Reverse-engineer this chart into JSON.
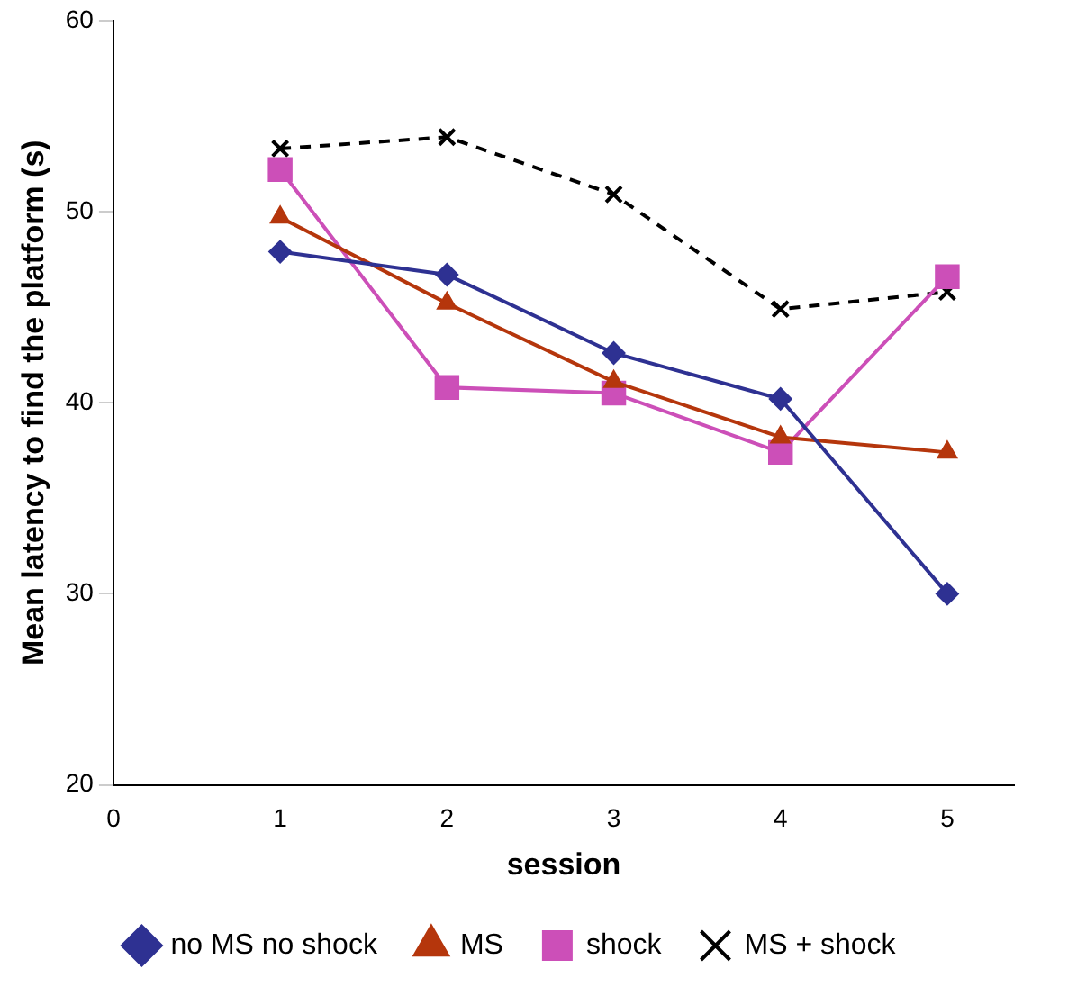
{
  "chart_data": {
    "type": "line",
    "xlabel": "session",
    "ylabel": "Mean latency to find the platform (s)",
    "x": [
      1,
      2,
      3,
      4,
      5
    ],
    "xlim": [
      0,
      5.4
    ],
    "xticks": [
      0,
      1,
      2,
      3,
      4,
      5
    ],
    "ylim": [
      20,
      60
    ],
    "yticks": [
      20,
      30,
      40,
      50,
      60
    ],
    "grid": false,
    "legend": "bottom",
    "series": [
      {
        "name": "no MS no shock",
        "color": "#2e3192",
        "marker": "diamond",
        "line_style": "solid",
        "values": [
          47.9,
          46.7,
          42.6,
          40.2,
          30.0
        ]
      },
      {
        "name": "MS",
        "color": "#b5360c",
        "marker": "triangle",
        "line_style": "solid",
        "values": [
          49.7,
          45.2,
          41.1,
          38.2,
          37.4
        ]
      },
      {
        "name": "shock",
        "color": "#cc4fb8",
        "marker": "square",
        "line_style": "solid",
        "values": [
          52.2,
          40.8,
          40.5,
          37.4,
          46.6
        ]
      },
      {
        "name": "MS + shock",
        "color": "#000000",
        "marker": "cross",
        "line_style": "dashed",
        "values": [
          53.3,
          53.9,
          50.9,
          44.9,
          45.8
        ]
      }
    ]
  }
}
